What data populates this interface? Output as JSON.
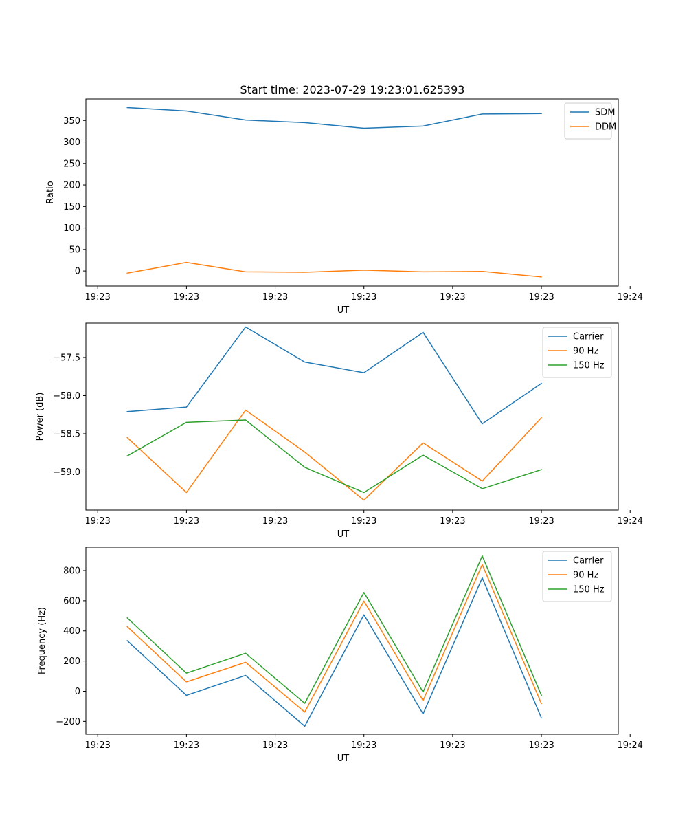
{
  "title": "Start time: 2023-07-29 19:23:01.625393",
  "colors": {
    "blue": "#1f77b4",
    "orange": "#ff7f0e",
    "green": "#2ca02c"
  },
  "chart_data": [
    {
      "type": "line",
      "title": "Start time: 2023-07-29 19:23:01.625393",
      "xlabel": "UT",
      "ylabel": "Ratio",
      "x": [
        1,
        2,
        3,
        4,
        5,
        6,
        7,
        8
      ],
      "xlim": [
        0.3,
        9.3
      ],
      "xticks": [
        0.5,
        2,
        3.5,
        5,
        6.5,
        8,
        9.5
      ],
      "xtick_labels": [
        "19:23",
        "19:23",
        "19:23",
        "19:23",
        "19:23",
        "19:23",
        "19:24"
      ],
      "ylim": [
        -35,
        400
      ],
      "yticks": [
        0,
        50,
        100,
        150,
        200,
        250,
        300,
        350
      ],
      "ytick_labels": [
        "0",
        "50",
        "100",
        "150",
        "200",
        "250",
        "300",
        "350"
      ],
      "legend": "top-right",
      "series": [
        {
          "name": "SDM",
          "color": "#1f77b4",
          "values": [
            380,
            372,
            351,
            345,
            332,
            337,
            365,
            366
          ]
        },
        {
          "name": "DDM",
          "color": "#ff7f0e",
          "values": [
            -5,
            20,
            -2,
            -3,
            2,
            -2,
            -1,
            -14
          ]
        }
      ]
    },
    {
      "type": "line",
      "title": "",
      "xlabel": "UT",
      "ylabel": "Power (dB)",
      "x": [
        1,
        2,
        3,
        4,
        5,
        6,
        7,
        8
      ],
      "xlim": [
        0.3,
        9.3
      ],
      "xticks": [
        0.5,
        2,
        3.5,
        5,
        6.5,
        8,
        9.5
      ],
      "xtick_labels": [
        "19:23",
        "19:23",
        "19:23",
        "19:23",
        "19:23",
        "19:23",
        "19:24"
      ],
      "ylim": [
        -59.5,
        -57.05
      ],
      "yticks": [
        -59.0,
        -58.5,
        -58.0,
        -57.5
      ],
      "ytick_labels": [
        "−59.0",
        "−58.5",
        "−58.0",
        "−57.5"
      ],
      "legend": "top-right",
      "series": [
        {
          "name": "Carrier",
          "color": "#1f77b4",
          "values": [
            -58.21,
            -58.15,
            -57.1,
            -57.56,
            -57.7,
            -57.17,
            -58.37,
            -57.84
          ]
        },
        {
          "name": "90 Hz",
          "color": "#ff7f0e",
          "values": [
            -58.55,
            -59.27,
            -58.19,
            -58.74,
            -59.37,
            -58.62,
            -59.12,
            -58.29
          ]
        },
        {
          "name": "150 Hz",
          "color": "#2ca02c",
          "values": [
            -58.79,
            -58.35,
            -58.32,
            -58.94,
            -59.27,
            -58.78,
            -59.22,
            -58.97
          ]
        }
      ]
    },
    {
      "type": "line",
      "title": "",
      "xlabel": "UT",
      "ylabel": "Frequency (Hz)",
      "x": [
        1,
        2,
        3,
        4,
        5,
        6,
        7,
        8
      ],
      "xlim": [
        0.3,
        9.3
      ],
      "xticks": [
        0.5,
        2,
        3.5,
        5,
        6.5,
        8,
        9.5
      ],
      "xtick_labels": [
        "19:23",
        "19:23",
        "19:23",
        "19:23",
        "19:23",
        "19:23",
        "19:24"
      ],
      "ylim": [
        -285,
        955
      ],
      "yticks": [
        -200,
        0,
        200,
        400,
        600,
        800
      ],
      "ytick_labels": [
        "−200",
        "0",
        "200",
        "400",
        "600",
        "800"
      ],
      "legend": "top-right",
      "series": [
        {
          "name": "Carrier",
          "color": "#1f77b4",
          "values": [
            335,
            -27,
            105,
            -232,
            507,
            -150,
            752,
            -177
          ]
        },
        {
          "name": "90 Hz",
          "color": "#ff7f0e",
          "values": [
            428,
            62,
            192,
            -138,
            598,
            -62,
            840,
            -82
          ]
        },
        {
          "name": "150 Hz",
          "color": "#2ca02c",
          "values": [
            486,
            120,
            252,
            -80,
            655,
            -5,
            897,
            -27
          ]
        }
      ]
    }
  ]
}
